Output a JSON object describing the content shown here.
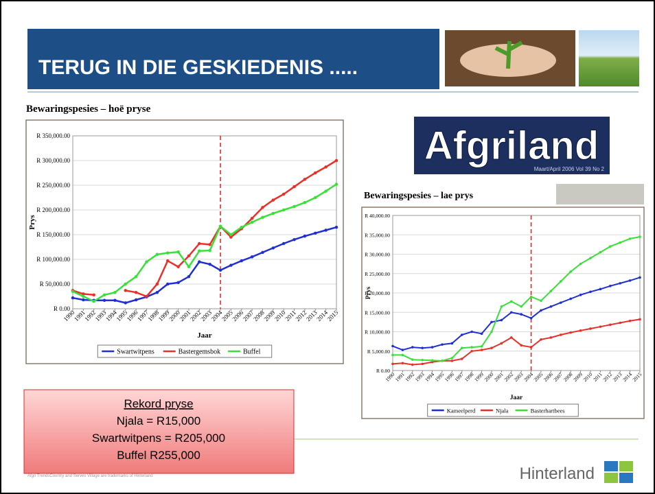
{
  "slide": {
    "title": "TERUG IN DIE GESKIEDENIS .....",
    "logo_text": "Afgriland",
    "logo_subtext": "Maart/April 2006  Vol 39 No 2",
    "record_box": [
      "Rekord pryse",
      "Njala = R15,000",
      "Swartwitpens = R205,000",
      "Buffel R255,000"
    ],
    "brand": "Hinterland",
    "footer": "Afgri TrendsCountry and Serves Village are trademarks of Hinterland"
  },
  "chart_data": [
    {
      "type": "line",
      "title": "Bewaringspesies – hoë pryse",
      "y_label": "Prys",
      "x_label": "Jaar",
      "categories": [
        "1990",
        "1991",
        "1992",
        "1993",
        "1994",
        "1995",
        "1996",
        "1997",
        "1998",
        "1999",
        "2000",
        "2001",
        "2002",
        "2003",
        "2004",
        "2005",
        "2006",
        "2007",
        "2008",
        "2009",
        "2010",
        "2011",
        "2012",
        "2013",
        "2014",
        "2015"
      ],
      "ylim": [
        0,
        350000
      ],
      "yticks": [
        {
          "value": 0,
          "label": "R 0.00"
        },
        {
          "value": 50000,
          "label": "R 50,000.00"
        },
        {
          "value": 100000,
          "label": "R 100,000.00"
        },
        {
          "value": 150000,
          "label": "R 150,000.00"
        },
        {
          "value": 200000,
          "label": "R 200,000.00"
        },
        {
          "value": 250000,
          "label": "R 250,000.00"
        },
        {
          "value": 300000,
          "label": "R 300,000.00"
        },
        {
          "value": 350000,
          "label": "R 350,000.00"
        }
      ],
      "reference_line": 2004,
      "series": [
        {
          "name": "Swartwitpens",
          "color": "#1f2fd0",
          "values": [
            22000,
            18000,
            17000,
            17000,
            17000,
            12000,
            18000,
            24000,
            33000,
            50000,
            53000,
            65000,
            95000,
            90000,
            78000,
            88000,
            97000,
            105000,
            114000,
            123000,
            132000,
            140000,
            147000,
            153000,
            159000,
            165000
          ]
        },
        {
          "name": "Bastergemsbok",
          "color": "#e8302a",
          "values": [
            37000,
            30000,
            28000,
            null,
            null,
            37000,
            33000,
            25000,
            50000,
            97000,
            85000,
            107000,
            132000,
            130000,
            167000,
            145000,
            162000,
            183000,
            205000,
            220000,
            232000,
            247000,
            262000,
            275000,
            287000,
            300000
          ]
        },
        {
          "name": "Buffel",
          "color": "#38e038",
          "values": [
            35000,
            25000,
            15000,
            28000,
            33000,
            50000,
            65000,
            95000,
            110000,
            113000,
            115000,
            85000,
            117000,
            118000,
            167000,
            150000,
            165000,
            175000,
            185000,
            193000,
            200000,
            207000,
            215000,
            225000,
            238000,
            252000
          ]
        }
      ]
    },
    {
      "type": "line",
      "title": "Bewaringspesies – lae prys",
      "y_label": "Prys",
      "x_label": "Jaar",
      "categories": [
        "1990",
        "1991",
        "1992",
        "1993",
        "1994",
        "1995",
        "1996",
        "1997",
        "1998",
        "1999",
        "2000",
        "2001",
        "2002",
        "2003",
        "2004",
        "2005",
        "2006",
        "2007",
        "2008",
        "2009",
        "2010",
        "2011",
        "2012",
        "2013",
        "2014",
        "2015"
      ],
      "ylim": [
        0,
        40000
      ],
      "yticks": [
        {
          "value": 0,
          "label": "R 0.00"
        },
        {
          "value": 5000,
          "label": "R 5,000.00"
        },
        {
          "value": 10000,
          "label": "R 10,000.00"
        },
        {
          "value": 15000,
          "label": "R 15,000.00"
        },
        {
          "value": 20000,
          "label": "R 20,000.00"
        },
        {
          "value": 25000,
          "label": "R 25,000.00"
        },
        {
          "value": 30000,
          "label": "R 30,000.00"
        },
        {
          "value": 35000,
          "label": "R 35,000.00"
        },
        {
          "value": 40000,
          "label": "R 40,000.00"
        }
      ],
      "reference_line": 2004,
      "series": [
        {
          "name": "Kameelperd",
          "color": "#1f2fd0",
          "values": [
            6300,
            5300,
            6000,
            5800,
            6000,
            6700,
            7000,
            9200,
            10000,
            9500,
            12500,
            13000,
            15000,
            14500,
            13500,
            15500,
            16500,
            17500,
            18500,
            19500,
            20300,
            21000,
            21800,
            22500,
            23200,
            24000
          ]
        },
        {
          "name": "Njala",
          "color": "#e8302a",
          "values": [
            1700,
            1900,
            1500,
            1700,
            2200,
            2500,
            2500,
            3000,
            5000,
            5300,
            5800,
            7000,
            8500,
            6500,
            6000,
            8000,
            8500,
            9200,
            9800,
            10300,
            10800,
            11300,
            11800,
            12300,
            12800,
            13200
          ]
        },
        {
          "name": "Basterhartbees",
          "color": "#38e038",
          "values": [
            4000,
            4000,
            2800,
            2700,
            2600,
            2500,
            3200,
            5800,
            6000,
            6200,
            10000,
            16500,
            17800,
            16500,
            19000,
            18000,
            20500,
            23000,
            25500,
            27500,
            29000,
            30500,
            32000,
            33000,
            34000,
            34500
          ]
        }
      ]
    }
  ]
}
